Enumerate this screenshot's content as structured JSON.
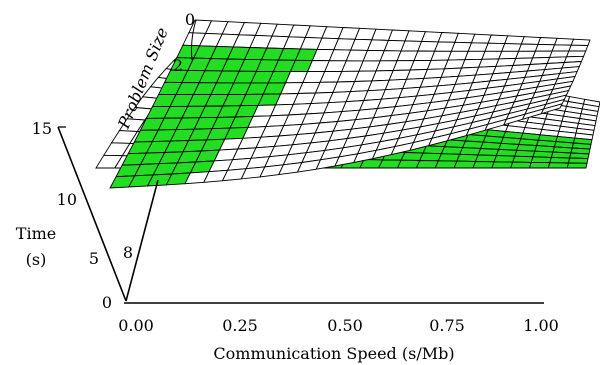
{
  "chart_data": {
    "type": "surface3d",
    "title": "",
    "x_axis": {
      "label": "Communication Speed (s/Mb)",
      "ticks": [
        "0.00",
        "0.25",
        "0.50",
        "0.75",
        "1.00"
      ],
      "range": [
        0,
        1
      ]
    },
    "y_axis": {
      "label": "Problem Size",
      "ticks": [
        "0",
        "2"
      ]
    },
    "z_axis": {
      "label_line1": "Time",
      "label_line2": "(s)",
      "ticks": [
        "0",
        "5",
        "10",
        "15"
      ],
      "depth_ticks": [
        "8"
      ],
      "range": [
        0,
        15
      ]
    },
    "series": [
      {
        "surface": "upper",
        "color": "#ffffff",
        "green_region": "left triangle (low communication speed)"
      },
      {
        "surface": "lower",
        "color": "#ffffff",
        "green_region": "right band (high communication speed)"
      }
    ],
    "colors": {
      "highlight": "#22dd22",
      "mesh": "#000000",
      "background": "#ffffff"
    }
  }
}
